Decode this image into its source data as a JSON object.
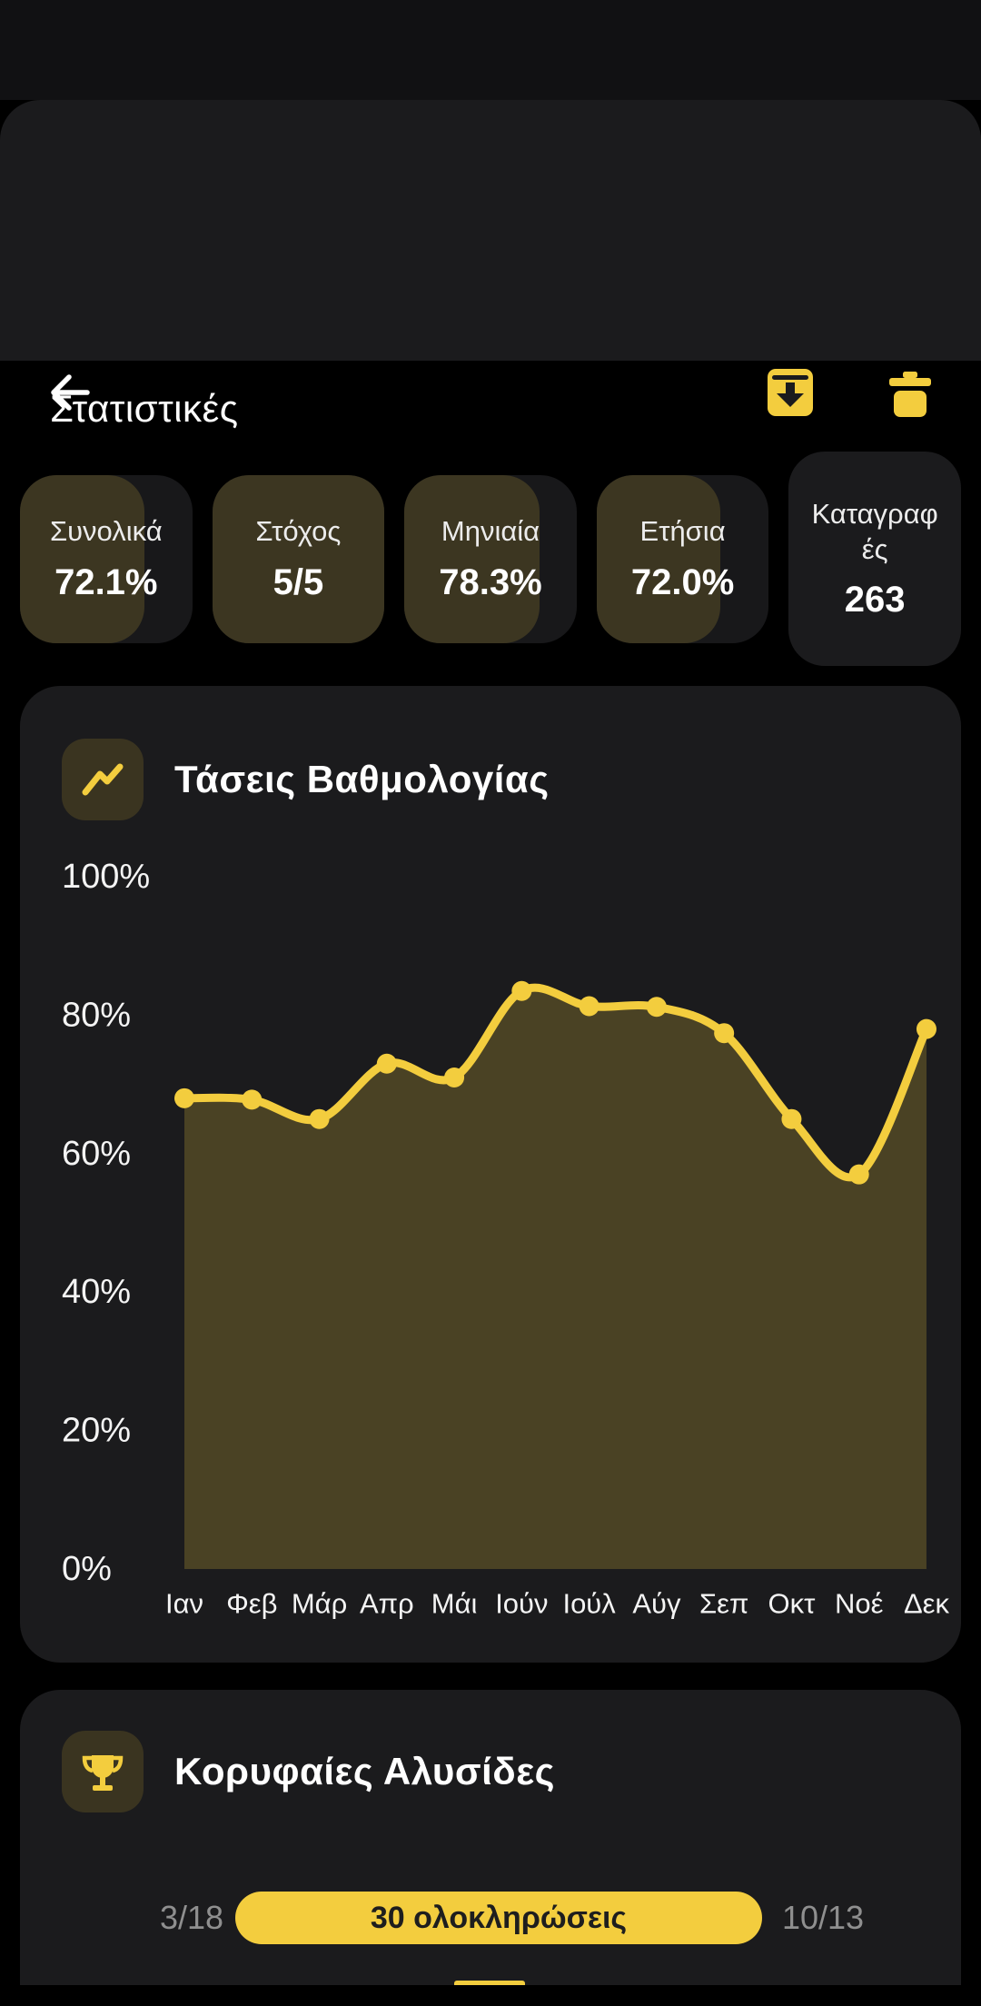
{
  "app": {
    "screen_title": "Στατιστικές"
  },
  "colors": {
    "accent_yellow": "#f3cd3e",
    "card_background": "#1b1b1d",
    "chip_olive": "#3a3420",
    "muted_gray": "#8f8f8f",
    "background": "#000000"
  },
  "stats": [
    {
      "label": "Συνολικά",
      "value": "72.1%",
      "fill_pct": 72.1
    },
    {
      "label": "Στόχος",
      "value": "5/5",
      "fill_pct": 100
    },
    {
      "label": "Μηνιαία",
      "value": "78.3%",
      "fill_pct": 78.3
    },
    {
      "label": "Ετήσια",
      "value": "72.0%",
      "fill_pct": 72
    },
    {
      "label": "Καταγραφές",
      "value": "263",
      "fill_pct": null
    }
  ],
  "chart_data": {
    "type": "line",
    "title": "Τάσεις Βαθμολογίας",
    "categories": [
      "Ιαν",
      "Φεβ",
      "Μάρ",
      "Απρ",
      "Μάι",
      "Ιούν",
      "Ιούλ",
      "Αύγ",
      "Σεπ",
      "Οκτ",
      "Νοέ",
      "Δεκ"
    ],
    "values": [
      68,
      67.8,
      65,
      73,
      71,
      83.5,
      81.3,
      81.2,
      77.4,
      65,
      57,
      78
    ],
    "unit": "%",
    "ylim": [
      0,
      100
    ],
    "yticks": [
      100,
      80,
      60,
      40,
      20,
      0
    ],
    "ytick_labels": [
      "100%",
      "80%",
      "60%",
      "40%",
      "20%",
      "0%"
    ],
    "grid": false,
    "legend": false,
    "area_fill": true,
    "line_color": "#f3cd3e",
    "area_color": "rgba(243,205,62,0.22)",
    "point_marker": "circle"
  },
  "streaks": {
    "title": "Κορυφαίες Αλυσίδες",
    "rows": [
      {
        "start": "3/18",
        "badge": "30 ολοκληρώσεις",
        "end": "10/13"
      }
    ]
  }
}
